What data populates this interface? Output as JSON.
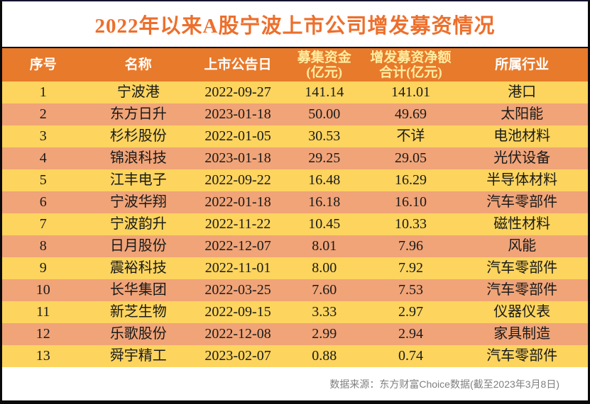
{
  "title": "2022年以来A股宁波上市公司增发募资情况",
  "colors": {
    "frame_border": "#0a0a0a",
    "title_text": "#ed6f2c",
    "header_bg": "#e87a2b",
    "header_text": "#ffffff",
    "header_text_highlight": "#ffeda0",
    "row_yellow": "#fcd45e",
    "row_salmon": "#f0a478",
    "row_text": "#1a1a1a",
    "footer_text": "#7f7f7f"
  },
  "chart_data": {
    "type": "table",
    "title": "2022年以来A股宁波上市公司增发募资情况",
    "columns": [
      {
        "lines": [
          "序号"
        ],
        "highlight": false
      },
      {
        "lines": [
          "名称"
        ],
        "highlight": false
      },
      {
        "lines": [
          "上市公告日"
        ],
        "highlight": false
      },
      {
        "lines": [
          "募集资金",
          "(亿元)"
        ],
        "highlight": true
      },
      {
        "lines": [
          "增发募资净额",
          "合计(亿元)"
        ],
        "highlight": true
      },
      {
        "lines": [
          "所属行业"
        ],
        "highlight": false
      }
    ],
    "rows": [
      [
        "1",
        "宁波港",
        "2022-09-27",
        "141.14",
        "141.01",
        "港口"
      ],
      [
        "2",
        "东方日升",
        "2023-01-18",
        "50.00",
        "49.69",
        "太阳能"
      ],
      [
        "3",
        "杉杉股份",
        "2022-01-05",
        "30.53",
        "不详",
        "电池材料"
      ],
      [
        "4",
        "锦浪科技",
        "2023-01-18",
        "29.25",
        "29.05",
        "光伏设备"
      ],
      [
        "5",
        "江丰电子",
        "2022-09-22",
        "16.48",
        "16.29",
        "半导体材料"
      ],
      [
        "6",
        "宁波华翔",
        "2022-01-18",
        "16.18",
        "16.10",
        "汽车零部件"
      ],
      [
        "7",
        "宁波韵升",
        "2022-11-22",
        "10.45",
        "10.33",
        "磁性材料"
      ],
      [
        "8",
        "日月股份",
        "2022-12-07",
        "8.01",
        "7.96",
        "风能"
      ],
      [
        "9",
        "震裕科技",
        "2022-11-01",
        "8.00",
        "7.92",
        "汽车零部件"
      ],
      [
        "10",
        "长华集团",
        "2022-03-25",
        "7.60",
        "7.53",
        "汽车零部件"
      ],
      [
        "11",
        "新芝生物",
        "2022-09-15",
        "3.33",
        "2.97",
        "仪器仪表"
      ],
      [
        "12",
        "乐歌股份",
        "2022-12-08",
        "2.99",
        "2.94",
        "家具制造"
      ],
      [
        "13",
        "舜宇精工",
        "2023-02-07",
        "0.88",
        "0.74",
        "汽车零部件"
      ]
    ]
  },
  "footer": {
    "source_note": "数据来源：东方财富Choice数据(截至2023年3月8日)"
  }
}
